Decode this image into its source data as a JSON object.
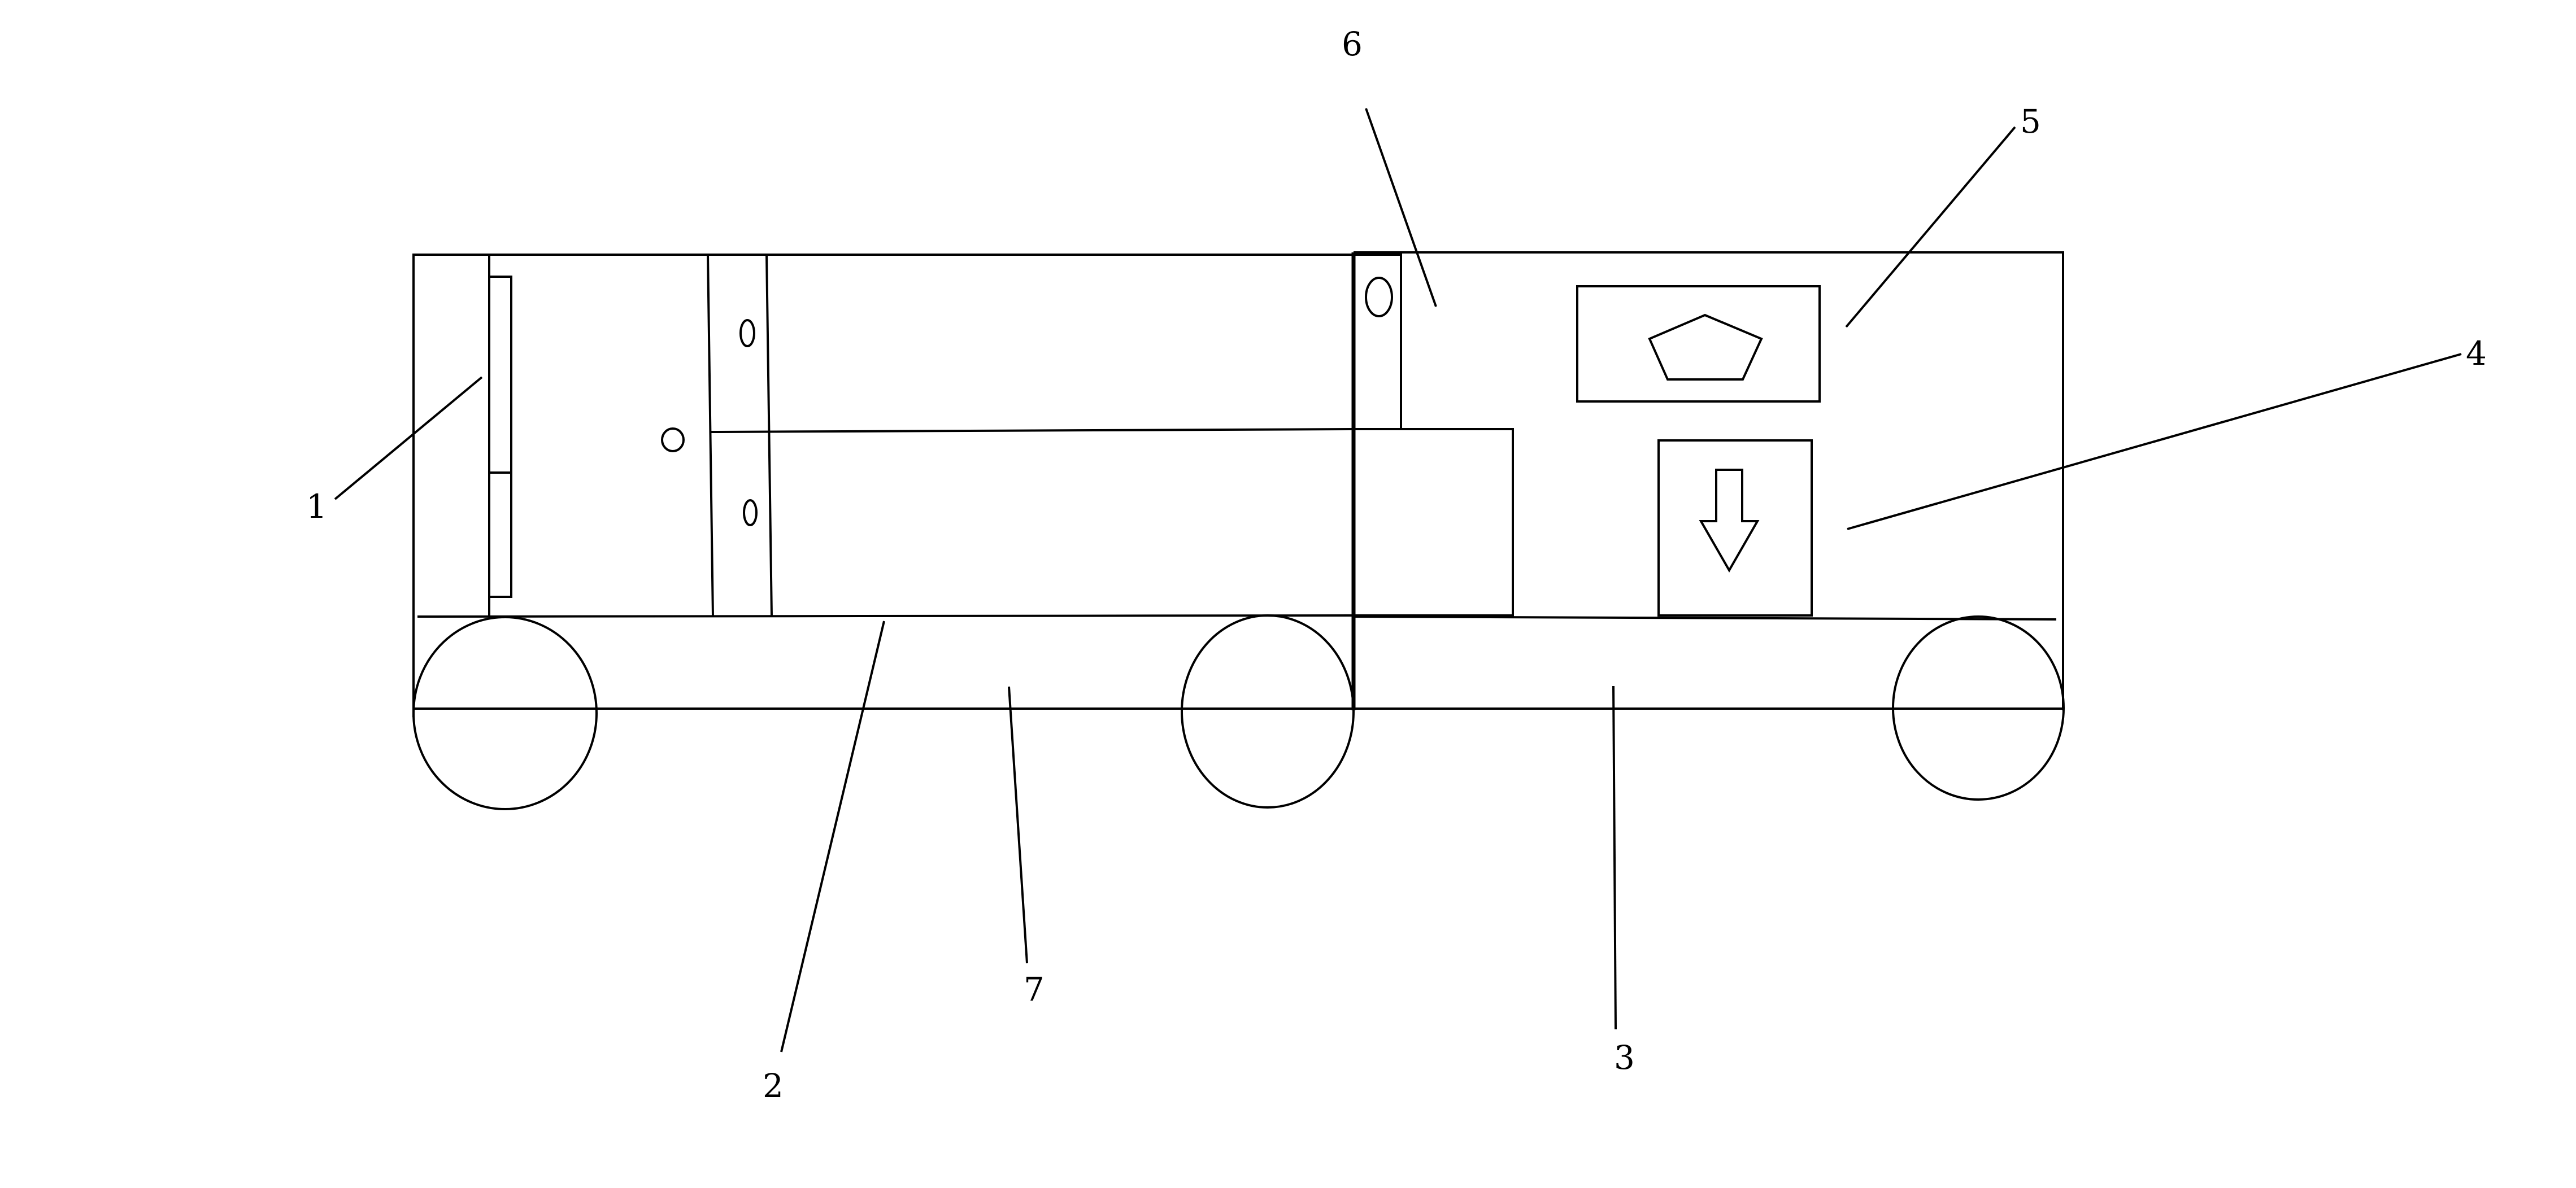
{
  "diagram": {
    "callout_labels": {
      "label_1": "1",
      "label_2": "2",
      "label_3": "3",
      "label_4": "4",
      "label_5": "5",
      "label_6": "6",
      "label_7": "7"
    },
    "colors": {
      "stroke": "#000000",
      "background": "#ffffff"
    },
    "icons": {
      "up_indicator": "pentagon-icon",
      "down_indicator": "down-arrow-icon"
    }
  }
}
